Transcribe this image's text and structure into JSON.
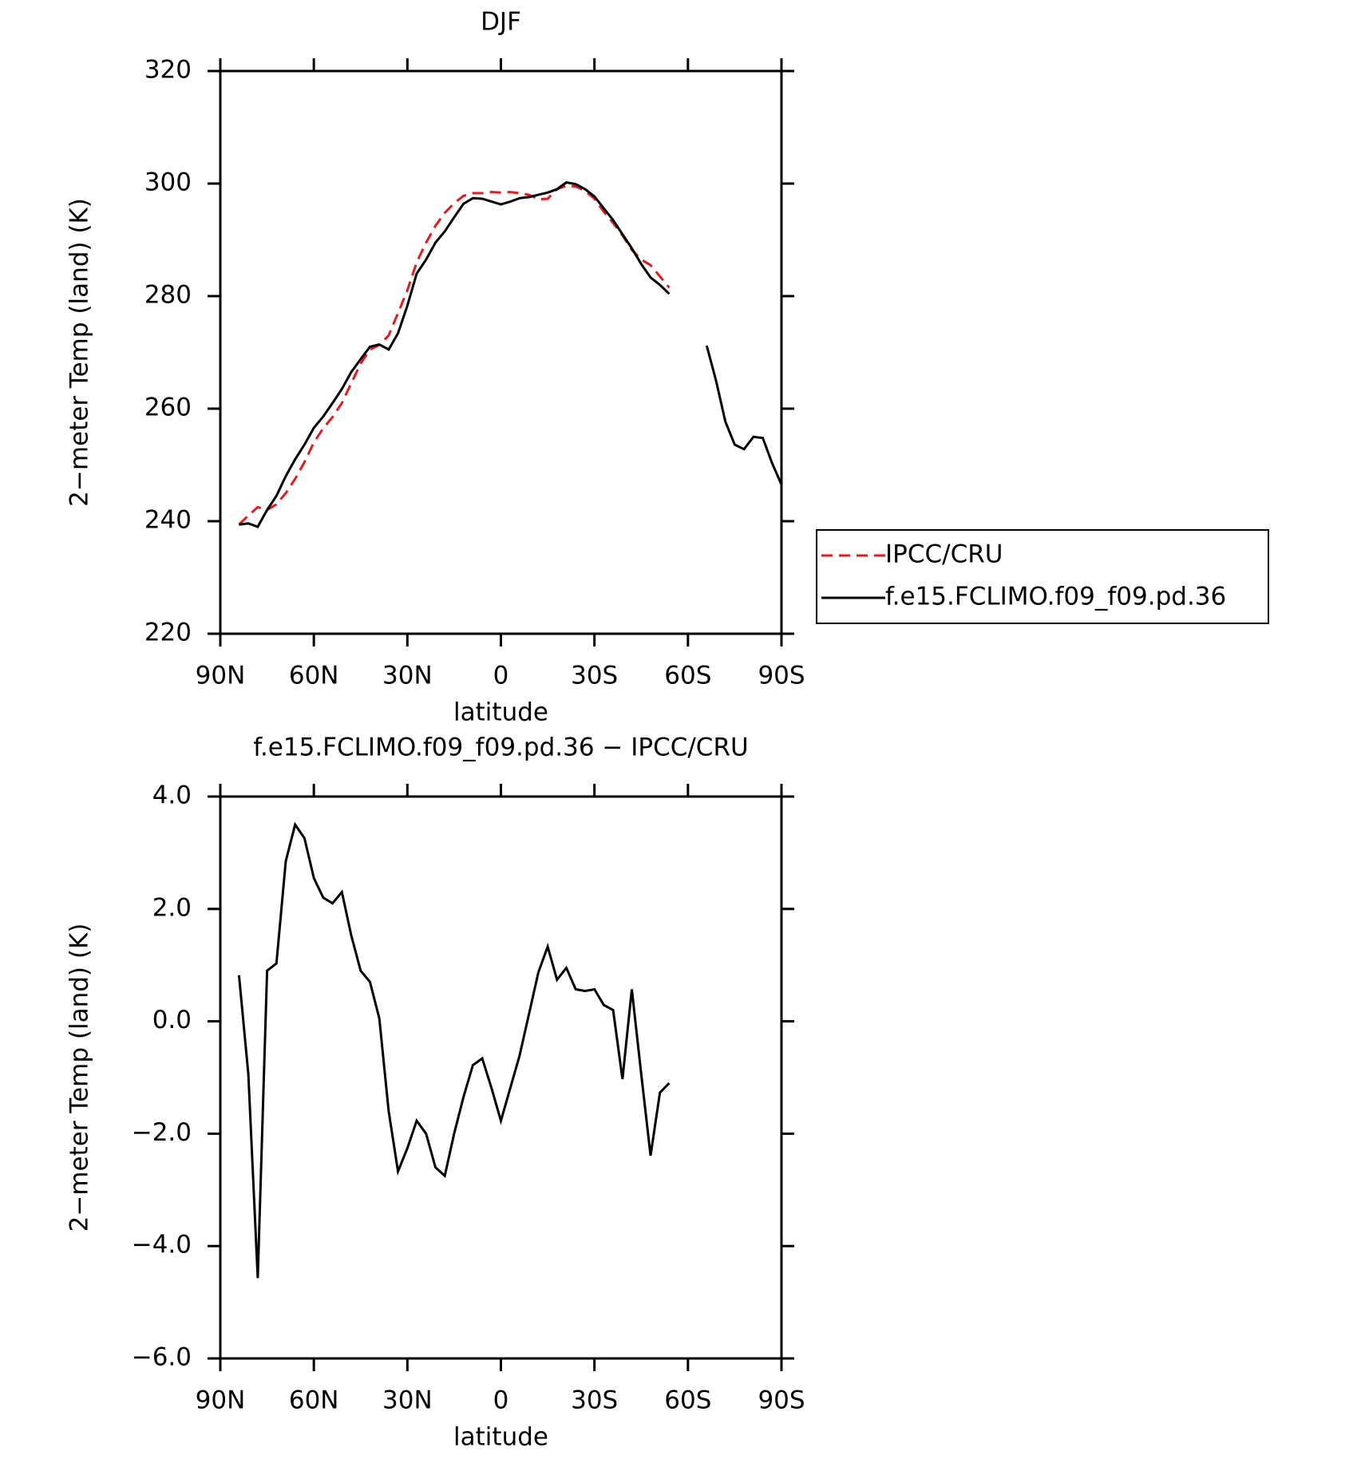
{
  "chart_data": [
    {
      "type": "line",
      "title": "DJF",
      "xlabel": "latitude",
      "ylabel": "2−meter Temp (land) (K)",
      "x": [
        84,
        81,
        78,
        75,
        72,
        69,
        66,
        63,
        60,
        57,
        54,
        51,
        48,
        45,
        42,
        39,
        36,
        33,
        30,
        27,
        24,
        21,
        18,
        15,
        12,
        9,
        6,
        3,
        0,
        -3,
        -6,
        -9,
        -12,
        -15,
        -18,
        -21,
        -24,
        -27,
        -30,
        -33,
        -36,
        -39,
        -42,
        -45,
        -48,
        -51,
        -54,
        -57,
        -60,
        -63,
        -66,
        -69,
        -72,
        -75,
        -78,
        -81,
        -84,
        -87,
        -90
      ],
      "series": [
        {
          "name": "IPCC/CRU",
          "color": "#e41a1c",
          "dash": true,
          "values": [
            239.4,
            241,
            242.5,
            242,
            243,
            245,
            247.5,
            250.5,
            254,
            256.5,
            258.5,
            261,
            264.5,
            268,
            270.5,
            271.3,
            273,
            277,
            281,
            286,
            289.5,
            292.5,
            294.8,
            296.5,
            297.8,
            298.3,
            298.3,
            298.5,
            298.4,
            298.5,
            298.3,
            298,
            297.2,
            297.3,
            299,
            299.6,
            299.5,
            298.7,
            297.3,
            295,
            293,
            290.8,
            288.2,
            286.5,
            285.5,
            283.5,
            281.5,
            null,
            null,
            null,
            null,
            null,
            null,
            null,
            null,
            null,
            null,
            null,
            null
          ]
        },
        {
          "name": "f.e15.FCLIMO.f09_f09.pd.36",
          "color": "#000000",
          "dash": false,
          "values": [
            239.4,
            239.6,
            239,
            242,
            244.5,
            248,
            251,
            253.6,
            256.6,
            258.6,
            261,
            263.5,
            266.5,
            268.8,
            271,
            271.4,
            270.5,
            273.4,
            278.3,
            284,
            286.5,
            289.5,
            291.5,
            294,
            296.4,
            297.4,
            297.3,
            296.8,
            296.3,
            296.8,
            297.4,
            297.6,
            298,
            298.4,
            299,
            300.2,
            299.9,
            299,
            297.7,
            295.6,
            293.5,
            291,
            288.5,
            285.7,
            283.3,
            282,
            280.4,
            null,
            null,
            null,
            271.2,
            265,
            257.7,
            253.6,
            252.8,
            255,
            254.8,
            250.3,
            246.5
          ]
        }
      ],
      "xlim": [
        90,
        -90
      ],
      "xticks": [
        {
          "value": 90,
          "label": "90N"
        },
        {
          "value": 60,
          "label": "60N"
        },
        {
          "value": 30,
          "label": "30N"
        },
        0,
        {
          "value": -30,
          "label": "30S"
        },
        {
          "value": -60,
          "label": "60S"
        },
        {
          "value": -90,
          "label": "90S"
        }
      ],
      "ylim": [
        220,
        320
      ],
      "yticks": [
        220,
        240,
        260,
        280,
        300,
        320
      ],
      "legend": "right"
    },
    {
      "type": "line",
      "title": "f.e15.FCLIMO.f09_f09.pd.36 − IPCC/CRU",
      "xlabel": "latitude",
      "ylabel": "2−meter Temp (land) (K)",
      "x": [
        84,
        81,
        78,
        75,
        72,
        69,
        66,
        63,
        60,
        57,
        54,
        51,
        48,
        45,
        42,
        39,
        36,
        33,
        30,
        27,
        24,
        21,
        18,
        15,
        12,
        9,
        6,
        3,
        0,
        -3,
        -6,
        -9,
        -12,
        -15,
        -18,
        -21,
        -24,
        -27,
        -30,
        -33,
        -36,
        -39,
        -42,
        -45,
        -48,
        -51,
        -54
      ],
      "values": [
        0.82,
        -0.94,
        -4.57,
        0.9,
        1.03,
        2.85,
        3.5,
        3.26,
        2.55,
        2.2,
        2.1,
        2.3,
        1.53,
        0.9,
        0.7,
        0.05,
        -1.6,
        -2.67,
        -2.26,
        -1.77,
        -2.0,
        -2.6,
        -2.75,
        -2.0,
        -1.35,
        -0.78,
        -0.66,
        -1.19,
        -1.77,
        -1.19,
        -0.61,
        0.13,
        0.87,
        1.33,
        0.74,
        0.95,
        0.57,
        0.54,
        0.57,
        0.29,
        0.2,
        -1.03,
        0.57,
        -0.94,
        -2.39,
        -1.27,
        -1.1
      ],
      "color": "#000000",
      "xlim": [
        90,
        -90
      ],
      "xticks": [
        {
          "value": 90,
          "label": "90N"
        },
        {
          "value": 60,
          "label": "60N"
        },
        {
          "value": 30,
          "label": "30N"
        },
        0,
        {
          "value": -30,
          "label": "30S"
        },
        {
          "value": -60,
          "label": "60S"
        },
        {
          "value": -90,
          "label": "90S"
        }
      ],
      "ylim": [
        -6,
        4
      ],
      "yticks": [
        {
          "value": -6,
          "label": "−6.0"
        },
        {
          "value": -4,
          "label": "−4.0"
        },
        {
          "value": -2,
          "label": "−2.0"
        },
        {
          "value": 0,
          "label": "0.0"
        },
        {
          "value": 2,
          "label": "2.0"
        },
        {
          "value": 4,
          "label": "4.0"
        }
      ]
    }
  ]
}
